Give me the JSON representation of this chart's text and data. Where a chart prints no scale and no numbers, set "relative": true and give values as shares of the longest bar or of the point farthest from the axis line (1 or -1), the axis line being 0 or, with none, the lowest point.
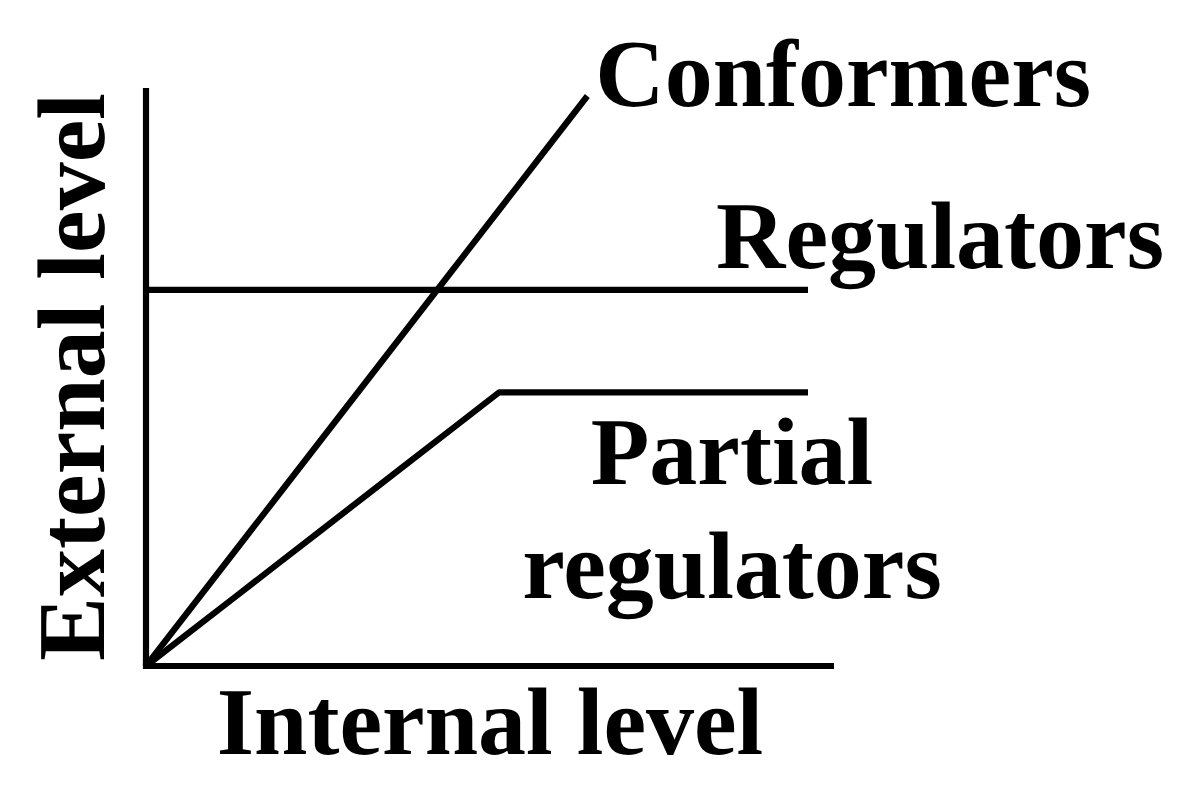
{
  "chart_data": {
    "type": "line",
    "xlabel": "Internal level",
    "ylabel": "External level",
    "relative": true,
    "marker": "none",
    "line_style": "solid",
    "categories": [
      null,
      null,
      null,
      null,
      null,
      null,
      null,
      null,
      null,
      null,
      null,
      null,
      null,
      null,
      null,
      null
    ],
    "series": [
      {
        "name": "Conformers",
        "color": "#000000",
        "values": [
          0,
          0.1,
          0.2,
          0.3,
          0.4,
          0.5,
          0.6,
          0.7,
          0.8,
          0.9,
          1,
          null,
          null,
          null,
          null,
          null
        ]
      },
      {
        "name": "Regulators",
        "color": "#000000",
        "values": [
          0.66,
          0.66,
          0.66,
          0.66,
          0.66,
          0.66,
          0.66,
          0.66,
          0.66,
          0.66,
          0.66,
          0.66,
          0.66,
          0.66,
          0.66,
          0.66
        ]
      },
      {
        "name": "Partial regulators",
        "color": "#000000",
        "values": [
          0,
          0.06,
          0.12,
          0.18,
          0.24,
          0.3,
          0.36,
          0.42,
          0.48,
          0.48,
          0.48,
          0.48,
          0.48,
          0.48,
          0.48,
          0.48
        ]
      }
    ]
  }
}
